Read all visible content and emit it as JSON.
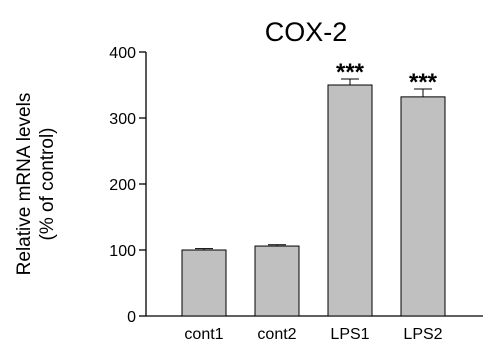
{
  "chart_data": {
    "type": "bar",
    "title": "COX-2",
    "ylabel_lines": [
      "Relative mRNA levels",
      "(% of control)"
    ],
    "xlabel": "",
    "categories": [
      "cont1",
      "cont2",
      "LPS1",
      "LPS2"
    ],
    "values": [
      100,
      106,
      350,
      332
    ],
    "errors": [
      2,
      2,
      9,
      12
    ],
    "significance": [
      "",
      "",
      "***",
      "***"
    ],
    "ylim": [
      0,
      400
    ],
    "yticks": [
      0,
      100,
      200,
      300,
      400
    ],
    "grid": false,
    "legend": "none",
    "bar_color": "#c0c0c0",
    "bar_edge_color": "#000000"
  }
}
